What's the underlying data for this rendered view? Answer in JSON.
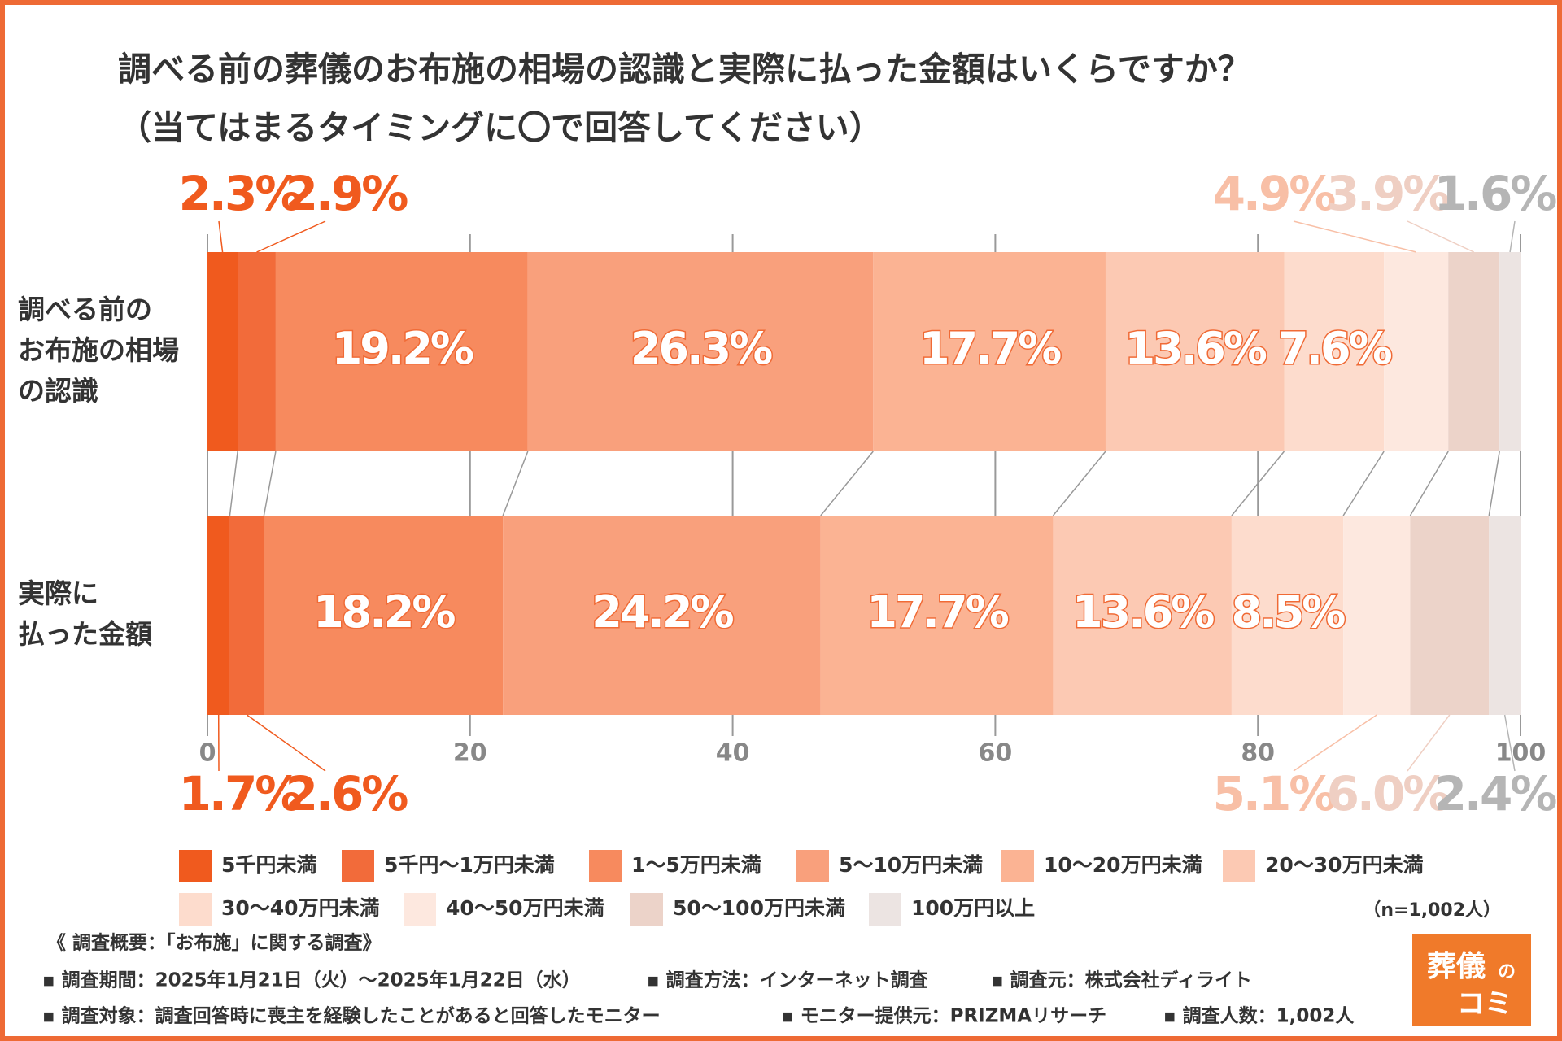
{
  "chart_data": {
    "type": "stacked-bar-horizontal",
    "title": "調べる前の葬儀のお布施の相場の認識と実際に払った金額はいくらですか？",
    "subtitle": "（当てはまるタイミングに〇で回答してください）",
    "categories": [
      [
        "調べる前の",
        "お布施の相場",
        "の認識"
      ],
      [
        "実際に",
        "払った金額"
      ]
    ],
    "xlim": [
      0,
      100
    ],
    "xticks": [
      0,
      20,
      40,
      60,
      80,
      100
    ],
    "grid": true,
    "series": [
      {
        "name": "5千円未満",
        "color": "#f05a1e",
        "label_color": "#f05a1e",
        "values": [
          2.3,
          1.7
        ],
        "value_labels": [
          "2.3%",
          "1.7%"
        ]
      },
      {
        "name": "5千円～1万円未満",
        "color": "#f26b3a",
        "label_color": "#f05a1e",
        "values": [
          2.9,
          2.6
        ],
        "value_labels": [
          "2.9%",
          "2.6%"
        ]
      },
      {
        "name": "1～5万円未満",
        "color": "#f78a5e",
        "values": [
          19.2,
          18.2
        ],
        "value_labels": [
          "19.2%",
          "18.2%"
        ]
      },
      {
        "name": "5～10万円未満",
        "color": "#f9a07c",
        "values": [
          26.3,
          24.2
        ],
        "value_labels": [
          "26.3%",
          "24.2%"
        ]
      },
      {
        "name": "10～20万円未満",
        "color": "#fbb393",
        "values": [
          17.7,
          17.7
        ],
        "value_labels": [
          "17.7%",
          "17.7%"
        ]
      },
      {
        "name": "20～30万円未満",
        "color": "#fcc9b3",
        "values": [
          13.6,
          13.6
        ],
        "value_labels": [
          "13.6%",
          "13.6%"
        ]
      },
      {
        "name": "30～40万円未満",
        "color": "#fddccd",
        "values": [
          7.6,
          8.5
        ],
        "value_labels": [
          "7.6%",
          "8.5%"
        ]
      },
      {
        "name": "40～50万円未満",
        "color": "#fde8df",
        "label_color": "#f8bfa6",
        "values": [
          4.9,
          5.1
        ],
        "value_labels": [
          "4.9%",
          "5.1%"
        ]
      },
      {
        "name": "50～100万円未満",
        "color": "#ecd3c9",
        "label_color": "#efcfc3",
        "values": [
          3.9,
          6.0
        ],
        "value_labels": [
          "3.9%",
          "6.0%"
        ]
      },
      {
        "name": "100万円以上",
        "color": "#ece4e2",
        "label_color": "#b5b5b5",
        "values": [
          1.6,
          2.4
        ],
        "value_labels": [
          "1.6%",
          "2.4%"
        ]
      }
    ],
    "sample_size": "（n=1,002人）",
    "footnotes": [
      "《 調査概要：「お布施」に関する調査》",
      "▪ 調査期間：2025年1月21日（火）～2025年1月22日（水）",
      "▪ 調査方法：インターネット調査",
      "▪ 調査元：株式会社ディライト",
      "▪ 調査対象：調査回答時に喪主を経験したことがあると回答したモニター",
      "▪ モニター提供元：PRIZMAリサーチ",
      "▪ 調査人数：1,002人"
    ]
  },
  "logo": {
    "main": "葬儀",
    "particle": "の",
    "sub": "コミ"
  }
}
